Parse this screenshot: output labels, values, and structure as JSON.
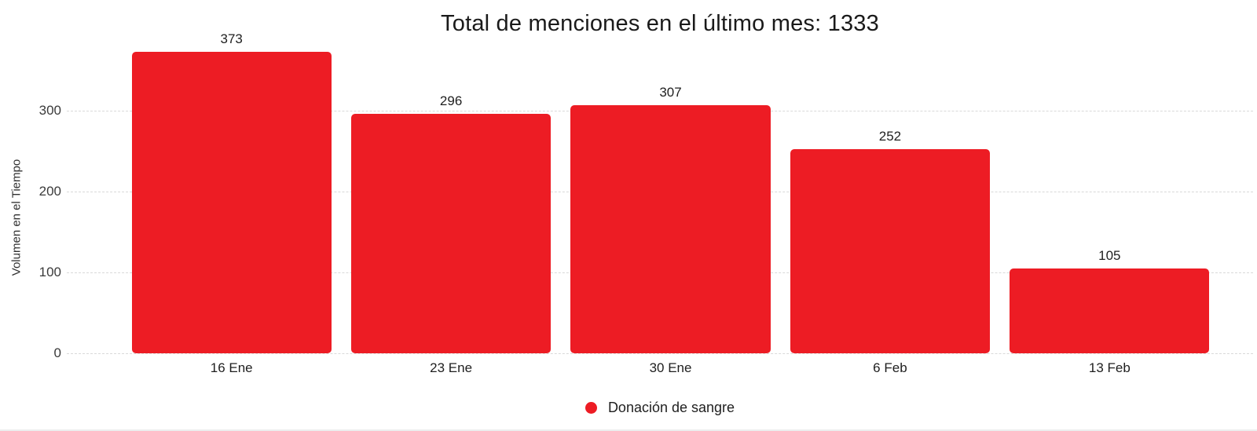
{
  "chart_data": {
    "type": "bar",
    "title": "Total de menciones en el último mes: 1333",
    "total_mentions": 1333,
    "categories": [
      "16 Ene",
      "23 Ene",
      "30 Ene",
      "6 Feb",
      "13 Feb"
    ],
    "series": [
      {
        "name": "Donación de sangre",
        "values": [
          373,
          296,
          307,
          252,
          105
        ]
      }
    ],
    "xlabel": "",
    "ylabel": "Volumen en el Tiempo",
    "y_ticks": [
      0,
      100,
      200,
      300
    ],
    "ylim": [
      0,
      388
    ],
    "grid": "horizontal-dashed",
    "value_labels": true,
    "legend_position": "bottom-center",
    "bar_color": "#ED1C24"
  },
  "colors": {
    "bar": "#ED1C24",
    "gridline": "#D9D9D9",
    "text": "#1F1F1F",
    "title_text": "#1A1A1A",
    "bottom_border": "#ECEEEE"
  }
}
